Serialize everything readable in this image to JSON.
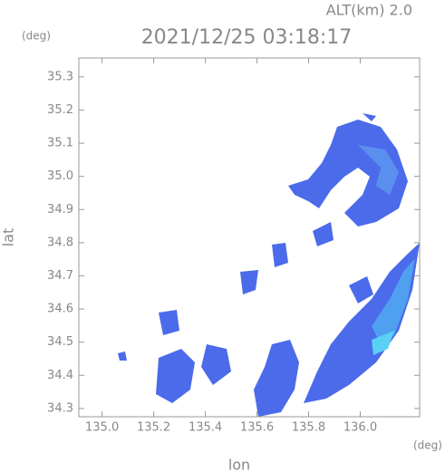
{
  "chart_data": {
    "type": "radar-map",
    "title": "2021/12/25 03:18:17",
    "subtitle": "ALT(km) 2.0",
    "x_label": "lon",
    "y_label": "lat",
    "x_unit": "(deg)",
    "y_unit": "(deg)",
    "xlim": [
      134.91,
      136.23
    ],
    "ylim": [
      34.275,
      35.357
    ],
    "xticks": [
      {
        "value": 135.0,
        "label": "135.0"
      },
      135.2,
      135.4,
      135.6,
      135.8,
      {
        "value": 136.0,
        "label": "136.0"
      }
    ],
    "yticks": [
      34.3,
      34.4,
      34.5,
      34.6,
      34.7,
      34.8,
      34.9,
      {
        "value": 35.0,
        "label": "35.0"
      },
      35.1,
      35.2,
      35.3
    ]
  }
}
